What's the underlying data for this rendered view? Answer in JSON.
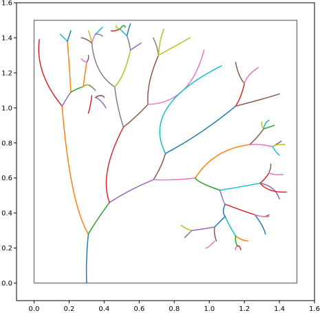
{
  "chart_data": {
    "type": "line",
    "title": "",
    "xlabel": "",
    "ylabel": "",
    "xlim": [
      -0.1,
      1.6
    ],
    "ylim": [
      -0.1,
      1.6
    ],
    "xticks": [
      "0.0",
      "0.2",
      "0.4",
      "0.6",
      "0.8",
      "1.0",
      "1.2",
      "1.4",
      "1.6"
    ],
    "yticks": [
      "0.0",
      "0.2",
      "0.4",
      "0.6",
      "0.8",
      "1.0",
      "1.2",
      "1.4",
      "1.6"
    ],
    "xtick_values": [
      0,
      0.2,
      0.4,
      0.6,
      0.8,
      1.0,
      1.2,
      1.4,
      1.6
    ],
    "ytick_values": [
      0,
      0.2,
      0.4,
      0.6,
      0.8,
      1.0,
      1.2,
      1.4,
      1.6
    ],
    "grid": false,
    "boundary": {
      "x": [
        0,
        1.5,
        1.5,
        0,
        0
      ],
      "y": [
        0,
        0,
        1.5,
        1.5,
        0
      ],
      "color": "#808080"
    },
    "series": [
      {
        "color": "#1f77b4",
        "x": [
          0.3,
          0.3,
          0.31
        ],
        "y": [
          0.0,
          0.14,
          0.28
        ]
      },
      {
        "color": "#ff7f0e",
        "x": [
          0.31,
          0.22,
          0.16
        ],
        "y": [
          0.28,
          0.55,
          1.01
        ]
      },
      {
        "color": "#2ca02c",
        "x": [
          0.31,
          0.36,
          0.43
        ],
        "y": [
          0.28,
          0.36,
          0.46
        ]
      },
      {
        "color": "#9467bd",
        "x": [
          0.43,
          0.55,
          0.68
        ],
        "y": [
          0.46,
          0.53,
          0.59
        ]
      },
      {
        "color": "#d62728",
        "x": [
          0.43,
          0.42,
          0.51
        ],
        "y": [
          0.46,
          0.65,
          0.89
        ]
      },
      {
        "color": "#d62728",
        "x": [
          0.16,
          0.05,
          0.03
        ],
        "y": [
          1.01,
          1.2,
          1.39
        ]
      },
      {
        "color": "#9467bd",
        "x": [
          0.16,
          0.19,
          0.21
        ],
        "y": [
          1.01,
          1.06,
          1.09
        ]
      },
      {
        "color": "#ff7f0e",
        "x": [
          0.21,
          0.2,
          0.19
        ],
        "y": [
          1.09,
          1.25,
          1.38
        ]
      },
      {
        "color": "#17becf",
        "x": [
          0.19,
          0.17,
          0.15
        ],
        "y": [
          1.38,
          1.4,
          1.42
        ]
      },
      {
        "color": "#1f77b4",
        "x": [
          0.19,
          0.2,
          0.21
        ],
        "y": [
          1.38,
          1.41,
          1.44
        ]
      },
      {
        "color": "#2ca02c",
        "x": [
          0.21,
          0.25,
          0.28
        ],
        "y": [
          1.09,
          1.11,
          1.12
        ]
      },
      {
        "color": "#ff7f0e",
        "x": [
          0.28,
          0.29,
          0.3
        ],
        "y": [
          1.12,
          1.19,
          1.26
        ]
      },
      {
        "color": "#8c564b",
        "x": [
          0.3,
          0.31,
          0.31
        ],
        "y": [
          1.26,
          1.28,
          1.3
        ]
      },
      {
        "color": "#e377c2",
        "x": [
          0.3,
          0.28,
          0.27
        ],
        "y": [
          1.26,
          1.27,
          1.28
        ]
      },
      {
        "color": "#7f7f7f",
        "x": [
          0.28,
          0.31,
          0.35
        ],
        "y": [
          1.12,
          1.13,
          1.1
        ]
      },
      {
        "color": "#bcbd22",
        "x": [
          0.28,
          0.3,
          0.32
        ],
        "y": [
          1.12,
          1.13,
          1.13
        ]
      },
      {
        "color": "#d62728",
        "x": [
          0.33,
          0.32,
          0.31
        ],
        "y": [
          1.07,
          1.01,
          0.97
        ]
      },
      {
        "color": "#9467bd",
        "x": [
          0.35,
          0.38,
          0.41
        ],
        "y": [
          1.06,
          1.04,
          1.0
        ]
      },
      {
        "color": "#8c564b",
        "x": [
          0.35,
          0.38,
          0.4
        ],
        "y": [
          1.06,
          1.07,
          1.06
        ]
      },
      {
        "color": "#7f7f7f",
        "x": [
          0.51,
          0.48,
          0.46
        ],
        "y": [
          0.89,
          1.0,
          1.12
        ]
      },
      {
        "color": "#7f7f7f",
        "x": [
          0.46,
          0.37,
          0.33
        ],
        "y": [
          1.12,
          1.22,
          1.37
        ]
      },
      {
        "color": "#e377c2",
        "x": [
          0.33,
          0.34,
          0.35
        ],
        "y": [
          1.37,
          1.4,
          1.42
        ]
      },
      {
        "color": "#bcbd22",
        "x": [
          0.33,
          0.32,
          0.31
        ],
        "y": [
          1.37,
          1.41,
          1.44
        ]
      },
      {
        "color": "#8c564b",
        "x": [
          0.33,
          0.3,
          0.27
        ],
        "y": [
          1.37,
          1.39,
          1.4
        ]
      },
      {
        "color": "#17becf",
        "x": [
          0.35,
          0.37,
          0.39
        ],
        "y": [
          1.42,
          1.44,
          1.46
        ]
      },
      {
        "color": "#9467bd",
        "x": [
          0.35,
          0.37,
          0.39
        ],
        "y": [
          1.42,
          1.42,
          1.41
        ]
      },
      {
        "color": "#bcbd22",
        "x": [
          0.46,
          0.51,
          0.55
        ],
        "y": [
          1.12,
          1.2,
          1.33
        ]
      },
      {
        "color": "#9467bd",
        "x": [
          0.55,
          0.58,
          0.61
        ],
        "y": [
          1.33,
          1.35,
          1.37
        ]
      },
      {
        "color": "#7f7f7f",
        "x": [
          0.55,
          0.54,
          0.53
        ],
        "y": [
          1.33,
          1.38,
          1.41
        ]
      },
      {
        "color": "#1f77b4",
        "x": [
          0.53,
          0.54,
          0.55
        ],
        "y": [
          1.41,
          1.45,
          1.48
        ]
      },
      {
        "color": "#17becf",
        "x": [
          0.53,
          0.51,
          0.49
        ],
        "y": [
          1.41,
          1.43,
          1.45
        ]
      },
      {
        "color": "#d62728",
        "x": [
          0.49,
          0.46,
          0.44
        ],
        "y": [
          1.45,
          1.44,
          1.44
        ]
      },
      {
        "color": "#bcbd22",
        "x": [
          0.49,
          0.47,
          0.47
        ],
        "y": [
          1.45,
          1.46,
          1.47
        ]
      },
      {
        "color": "#2ca02c",
        "x": [
          0.49,
          0.51,
          0.52
        ],
        "y": [
          1.45,
          1.47,
          1.46
        ]
      },
      {
        "color": "#8c564b",
        "x": [
          0.51,
          0.58,
          0.65
        ],
        "y": [
          0.89,
          0.95,
          1.02
        ]
      },
      {
        "color": "#8c564b",
        "x": [
          0.65,
          0.66,
          0.71
        ],
        "y": [
          1.02,
          1.15,
          1.3
        ]
      },
      {
        "color": "#7f7f7f",
        "x": [
          0.71,
          0.7,
          0.68
        ],
        "y": [
          1.3,
          1.35,
          1.4
        ]
      },
      {
        "color": "#bcbd22",
        "x": [
          0.71,
          0.72,
          0.74
        ],
        "y": [
          1.3,
          1.38,
          1.45
        ]
      },
      {
        "color": "#bcbd22",
        "x": [
          0.71,
          0.8,
          0.89
        ],
        "y": [
          1.3,
          1.35,
          1.4
        ]
      },
      {
        "color": "#e377c2",
        "x": [
          0.65,
          0.85,
          0.97
        ],
        "y": [
          1.02,
          1.1,
          1.33
        ]
      },
      {
        "color": "#8c564b",
        "x": [
          0.68,
          0.72,
          0.75
        ],
        "y": [
          0.59,
          0.66,
          0.74
        ]
      },
      {
        "color": "#17becf",
        "x": [
          0.75,
          0.76,
          1.07
        ],
        "y": [
          0.74,
          1.0,
          1.24
        ]
      },
      {
        "color": "#1f77b4",
        "x": [
          0.75,
          0.95,
          1.15
        ],
        "y": [
          0.74,
          0.86,
          1.01
        ]
      },
      {
        "color": "#d62728",
        "x": [
          1.15,
          1.18,
          1.2
        ],
        "y": [
          1.01,
          1.07,
          1.14
        ]
      },
      {
        "color": "#8c564b",
        "x": [
          1.2,
          1.17,
          1.15
        ],
        "y": [
          1.14,
          1.19,
          1.26
        ]
      },
      {
        "color": "#e377c2",
        "x": [
          1.2,
          1.23,
          1.28
        ],
        "y": [
          1.14,
          1.19,
          1.23
        ]
      },
      {
        "color": "#8c564b",
        "x": [
          1.15,
          1.3,
          1.4
        ],
        "y": [
          1.01,
          1.05,
          1.08
        ]
      },
      {
        "color": "#e377c2",
        "x": [
          0.68,
          0.8,
          0.92
        ],
        "y": [
          0.59,
          0.59,
          0.6
        ]
      },
      {
        "color": "#ff7f0e",
        "x": [
          0.92,
          1.05,
          1.23
        ],
        "y": [
          0.6,
          0.73,
          0.79
        ]
      },
      {
        "color": "#8c564b",
        "x": [
          1.23,
          1.27,
          1.31
        ],
        "y": [
          0.79,
          0.83,
          0.88
        ]
      },
      {
        "color": "#bcbd22",
        "x": [
          1.31,
          1.3,
          1.3
        ],
        "y": [
          0.88,
          0.9,
          0.92
        ]
      },
      {
        "color": "#17becf",
        "x": [
          1.31,
          1.32,
          1.34
        ],
        "y": [
          0.88,
          0.91,
          0.93
        ]
      },
      {
        "color": "#2ca02c",
        "x": [
          1.31,
          1.34,
          1.37
        ],
        "y": [
          0.88,
          0.89,
          0.9
        ]
      },
      {
        "color": "#e377c2",
        "x": [
          1.23,
          1.29,
          1.36
        ],
        "y": [
          0.79,
          0.79,
          0.78
        ]
      },
      {
        "color": "#8c564b",
        "x": [
          1.36,
          1.38,
          1.41
        ],
        "y": [
          0.78,
          0.79,
          0.81
        ]
      },
      {
        "color": "#bcbd22",
        "x": [
          1.36,
          1.39,
          1.43
        ],
        "y": [
          0.78,
          0.79,
          0.79
        ]
      },
      {
        "color": "#17becf",
        "x": [
          1.36,
          1.38,
          1.4
        ],
        "y": [
          0.78,
          0.75,
          0.73
        ]
      },
      {
        "color": "#2ca02c",
        "x": [
          0.92,
          0.96,
          1.06
        ],
        "y": [
          0.6,
          0.57,
          0.53
        ]
      },
      {
        "color": "#17becf",
        "x": [
          1.06,
          1.18,
          1.29
        ],
        "y": [
          0.53,
          0.55,
          0.57
        ]
      },
      {
        "color": "#d62728",
        "x": [
          1.29,
          1.32,
          1.34
        ],
        "y": [
          0.57,
          0.6,
          0.63
        ]
      },
      {
        "color": "#8c564b",
        "x": [
          1.34,
          1.35,
          1.35
        ],
        "y": [
          0.63,
          0.66,
          0.68
        ]
      },
      {
        "color": "#e377c2",
        "x": [
          1.34,
          1.37,
          1.42
        ],
        "y": [
          0.63,
          0.62,
          0.62
        ]
      },
      {
        "color": "#9467bd",
        "x": [
          1.29,
          1.36,
          1.4
        ],
        "y": [
          0.57,
          0.54,
          0.48
        ]
      },
      {
        "color": "#d62728",
        "x": [
          1.29,
          1.35,
          1.44
        ],
        "y": [
          0.57,
          0.53,
          0.52
        ]
      },
      {
        "color": "#9467bd",
        "x": [
          1.06,
          1.08,
          1.09
        ],
        "y": [
          0.53,
          0.47,
          0.45
        ]
      },
      {
        "color": "#d62728",
        "x": [
          1.09,
          1.2,
          1.26
        ],
        "y": [
          0.45,
          0.41,
          0.39
        ]
      },
      {
        "color": "#1f77b4",
        "x": [
          1.26,
          1.3,
          1.32
        ],
        "y": [
          0.39,
          0.33,
          0.28
        ]
      },
      {
        "color": "#8c564b",
        "x": [
          1.26,
          1.31,
          1.34
        ],
        "y": [
          0.39,
          0.38,
          0.39
        ]
      },
      {
        "color": "#e377c2",
        "x": [
          1.26,
          1.3,
          1.34
        ],
        "y": [
          0.39,
          0.38,
          0.38
        ]
      },
      {
        "color": "#1f77b4",
        "x": [
          1.09,
          1.08,
          1.09
        ],
        "y": [
          0.45,
          0.41,
          0.38
        ]
      },
      {
        "color": "#17becf",
        "x": [
          1.09,
          1.12,
          1.15
        ],
        "y": [
          0.38,
          0.32,
          0.27
        ]
      },
      {
        "color": "#ff7f0e",
        "x": [
          1.15,
          1.18,
          1.22
        ],
        "y": [
          0.27,
          0.25,
          0.24
        ]
      },
      {
        "color": "#2ca02c",
        "x": [
          1.15,
          1.15,
          1.16
        ],
        "y": [
          0.27,
          0.24,
          0.21
        ]
      },
      {
        "color": "#e377c2",
        "x": [
          1.16,
          1.15,
          1.15
        ],
        "y": [
          0.21,
          0.2,
          0.19
        ]
      },
      {
        "color": "#d62728",
        "x": [
          1.16,
          1.17,
          1.18
        ],
        "y": [
          0.21,
          0.21,
          0.19
        ]
      },
      {
        "color": "#1f77b4",
        "x": [
          1.09,
          1.06,
          1.03
        ],
        "y": [
          0.38,
          0.35,
          0.32
        ]
      },
      {
        "color": "#8c564b",
        "x": [
          1.03,
          1.03,
          1.04
        ],
        "y": [
          0.32,
          0.28,
          0.24
        ]
      },
      {
        "color": "#9467bd",
        "x": [
          1.03,
          0.97,
          0.9
        ],
        "y": [
          0.32,
          0.31,
          0.3
        ]
      },
      {
        "color": "#bcbd22",
        "x": [
          0.9,
          0.87,
          0.84
        ],
        "y": [
          0.3,
          0.31,
          0.33
        ]
      },
      {
        "color": "#7f7f7f",
        "x": [
          0.9,
          0.88,
          0.86
        ],
        "y": [
          0.3,
          0.28,
          0.26
        ]
      },
      {
        "color": "#e377c2",
        "x": [
          1.03,
          1.0,
          0.98
        ],
        "y": [
          0.24,
          0.21,
          0.2
        ]
      }
    ]
  }
}
